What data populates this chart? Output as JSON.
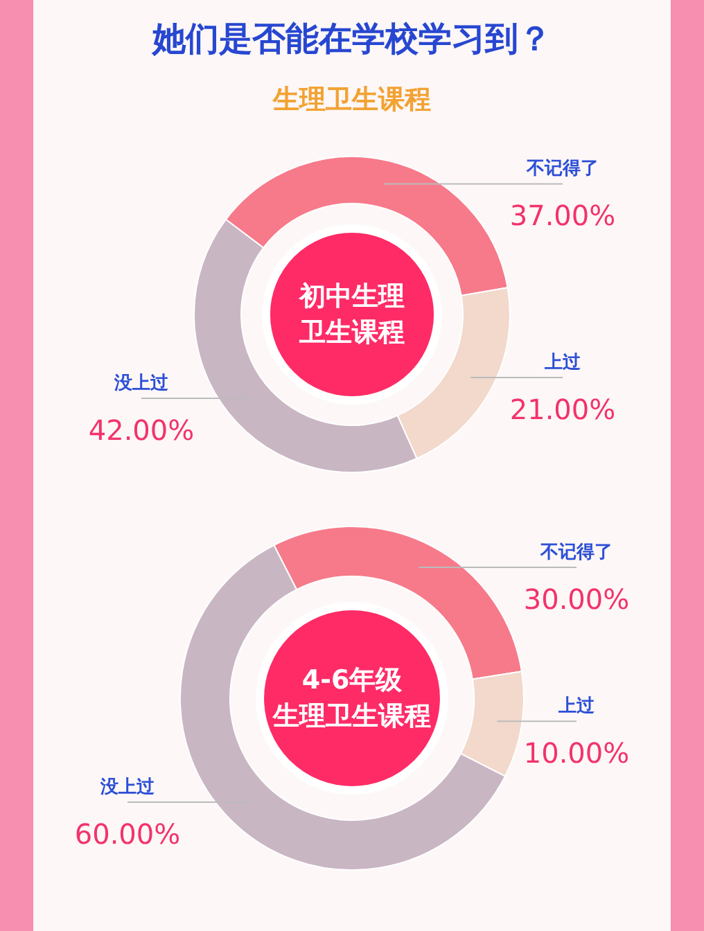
{
  "chart_data": [
    {
      "type": "donut",
      "title": "她们是否能在学校学习到？",
      "subtitle": "生理卫生课程",
      "categories": [
        "不记得了",
        "上过",
        "没上过"
      ],
      "values": [
        37,
        21,
        42
      ],
      "colors": [
        "#f67a8a",
        "#f2d9cc",
        "#c9b6c3"
      ],
      "value_labels": [
        "37.00%",
        "21.00%",
        "42.00%"
      ],
      "annotations": [
        "初中生理",
        "卫生课程"
      ]
    },
    {
      "type": "donut",
      "categories": [
        "不记得了",
        "上过",
        "没上过"
      ],
      "values": [
        30,
        10,
        60
      ],
      "colors": [
        "#f67a8a",
        "#f2d9cc",
        "#c9b6c3"
      ],
      "value_labels": [
        "30.00%",
        "10.00%",
        "60.00%"
      ],
      "annotations": [
        "4-6年级",
        "生理卫生课程"
      ]
    }
  ]
}
